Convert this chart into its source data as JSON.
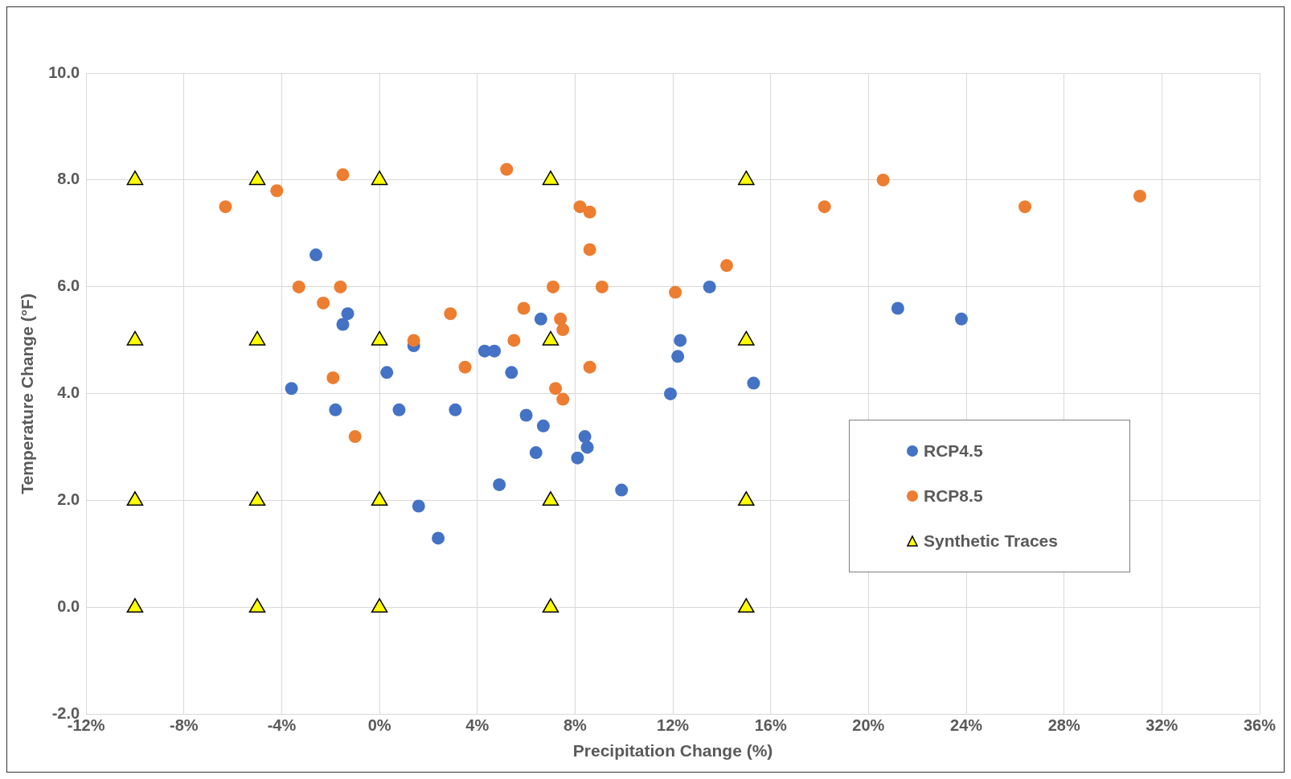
{
  "chart_data": {
    "type": "scatter",
    "xlabel": "Precipitation Change (%)",
    "ylabel": "Temperature Change (°F)",
    "xlim": [
      -12,
      36
    ],
    "xticks": [
      {
        "value": -12,
        "label": "-12%"
      },
      {
        "value": -8,
        "label": "-8%"
      },
      {
        "value": -4,
        "label": "-4%"
      },
      {
        "value": 0,
        "label": "0%"
      },
      {
        "value": 4,
        "label": "4%"
      },
      {
        "value": 8,
        "label": "8%"
      },
      {
        "value": 12,
        "label": "12%"
      },
      {
        "value": 16,
        "label": "16%"
      },
      {
        "value": 20,
        "label": "20%"
      },
      {
        "value": 24,
        "label": "24%"
      },
      {
        "value": 28,
        "label": "28%"
      },
      {
        "value": 32,
        "label": "32%"
      },
      {
        "value": 36,
        "label": "36%"
      }
    ],
    "ylim": [
      -2,
      10
    ],
    "yticks": [
      {
        "value": -2,
        "label": "-2.0"
      },
      {
        "value": 0,
        "label": "0.0"
      },
      {
        "value": 2,
        "label": "2.0"
      },
      {
        "value": 4,
        "label": "4.0"
      },
      {
        "value": 6,
        "label": "6.0"
      },
      {
        "value": 8,
        "label": "8.0"
      },
      {
        "value": 10,
        "label": "10.0"
      }
    ],
    "grid": true,
    "legend": "right",
    "series": [
      {
        "name": "RCP4.5",
        "color": "#4472c4",
        "marker": "circle",
        "x": [
          -2.6,
          -3.6,
          -1.3,
          -1.5,
          -1.8,
          0.3,
          0.8,
          1.4,
          1.6,
          2.4,
          3.1,
          4.3,
          4.7,
          4.9,
          5.4,
          6.0,
          6.6,
          6.7,
          6.4,
          8.1,
          8.4,
          8.5,
          9.9,
          11.9,
          12.2,
          12.3,
          13.5,
          15.3,
          21.2,
          23.8
        ],
        "values": [
          6.6,
          4.1,
          5.5,
          5.3,
          3.7,
          4.4,
          3.7,
          4.9,
          1.9,
          1.3,
          3.7,
          4.8,
          4.8,
          2.3,
          4.4,
          3.6,
          5.4,
          3.4,
          2.9,
          2.8,
          3.2,
          3.0,
          2.2,
          4.0,
          4.7,
          5.0,
          6.0,
          4.2,
          5.6,
          5.4
        ]
      },
      {
        "name": "RCP8.5",
        "color": "#ed7d31",
        "marker": "circle",
        "x": [
          -6.3,
          -4.2,
          -1.5,
          -3.3,
          -2.3,
          -1.6,
          -1.9,
          -1.0,
          1.4,
          2.9,
          3.5,
          5.2,
          5.5,
          5.9,
          7.1,
          7.4,
          7.5,
          7.2,
          7.5,
          8.2,
          8.6,
          8.6,
          9.1,
          8.6,
          12.1,
          14.2,
          18.2,
          20.6,
          26.4,
          31.1
        ],
        "values": [
          7.5,
          7.8,
          8.1,
          6.0,
          5.7,
          6.0,
          4.3,
          3.2,
          5.0,
          5.5,
          4.5,
          8.2,
          5.0,
          5.6,
          6.0,
          5.4,
          5.2,
          4.1,
          3.9,
          7.5,
          7.4,
          6.7,
          6.0,
          4.5,
          5.9,
          6.4,
          7.5,
          8.0,
          7.5,
          7.7
        ]
      },
      {
        "name": "Synthetic Traces",
        "color": "#ffff00",
        "marker": "triangle",
        "x": [
          -10,
          -10,
          -10,
          -10,
          -5,
          -5,
          -5,
          -5,
          0,
          0,
          0,
          0,
          7,
          7,
          7,
          7,
          15,
          15,
          15,
          15
        ],
        "values": [
          8,
          5,
          2,
          0,
          8,
          5,
          2,
          0,
          8,
          5,
          2,
          0,
          8,
          5,
          2,
          0,
          8,
          5,
          2,
          0
        ]
      }
    ]
  }
}
